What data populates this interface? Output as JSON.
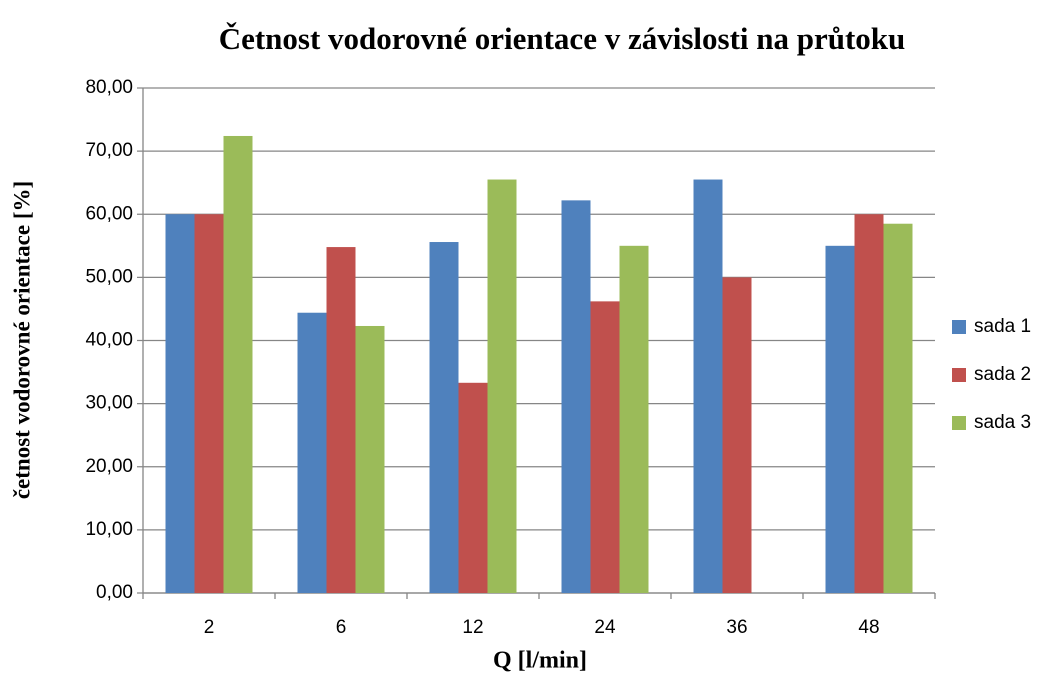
{
  "chart_data": {
    "type": "bar",
    "title": "Četnost vodorovné orientace v závislosti na průtoku",
    "x_label": "Q [l/min]",
    "y_label": "četnost vodorovné orientace [%]",
    "categories": [
      "2",
      "6",
      "12",
      "24",
      "36",
      "48"
    ],
    "series": [
      {
        "name": "sada 1",
        "color": "#4f81bd",
        "values": [
          60,
          44.4,
          55.6,
          62.2,
          65.5,
          55
        ]
      },
      {
        "name": "sada 2",
        "color": "#c0504d",
        "values": [
          60,
          54.8,
          33.3,
          46.2,
          50,
          60
        ]
      },
      {
        "name": "sada 3",
        "color": "#9bbb59",
        "values": [
          72.4,
          42.3,
          65.5,
          55,
          null,
          58.5
        ]
      }
    ],
    "ylim": [
      0,
      80
    ],
    "yticks": [
      {
        "value": 0,
        "label": "0,00"
      },
      {
        "value": 10,
        "label": "10,00"
      },
      {
        "value": 20,
        "label": "20,00"
      },
      {
        "value": 30,
        "label": "30,00"
      },
      {
        "value": 40,
        "label": "40,00"
      },
      {
        "value": 50,
        "label": "50,00"
      },
      {
        "value": 60,
        "label": "60,00"
      },
      {
        "value": 70,
        "label": "70,00"
      },
      {
        "value": 80,
        "label": "80,00"
      }
    ],
    "grid": true,
    "legend": "right"
  }
}
